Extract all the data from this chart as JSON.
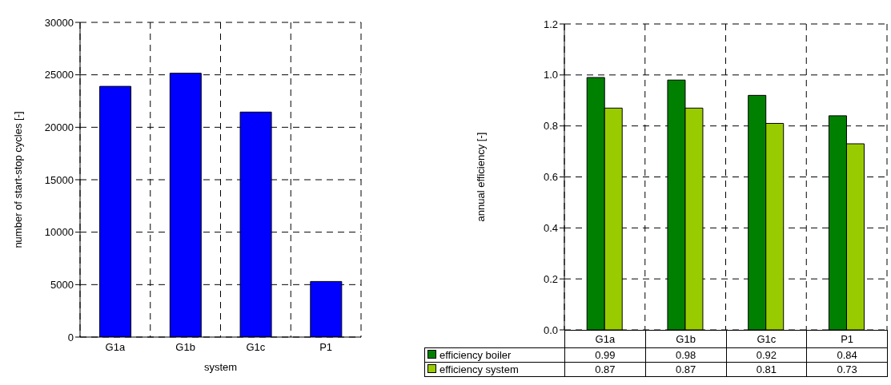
{
  "chart_data": [
    {
      "type": "bar",
      "xlabel": "system",
      "ylabel": "number of start-stop cycles [-]",
      "categories": [
        "G1a",
        "G1b",
        "G1c",
        "P1"
      ],
      "values": [
        23900,
        25150,
        21450,
        5300
      ],
      "color": "#0000ff",
      "ylim": [
        0,
        30000
      ],
      "yticks": [
        0,
        5000,
        10000,
        15000,
        20000,
        25000,
        30000
      ],
      "grid": true
    },
    {
      "type": "bar",
      "ylabel": "annual efficiency [-]",
      "categories": [
        "G1a",
        "G1b",
        "G1c",
        "P1"
      ],
      "series": [
        {
          "name": "efficiency boiler",
          "color": "#008000",
          "values": [
            0.99,
            0.98,
            0.92,
            0.84
          ]
        },
        {
          "name": "efficiency system",
          "color": "#99cc00",
          "values": [
            0.87,
            0.87,
            0.81,
            0.73
          ]
        }
      ],
      "ylim": [
        0,
        1.2
      ],
      "yticks": [
        {
          "value": 0,
          "label": "0.0"
        },
        {
          "value": 0.2,
          "label": "0.2"
        },
        {
          "value": 0.4,
          "label": "0.4"
        },
        {
          "value": 0.6,
          "label": "0.6"
        },
        {
          "value": 0.8,
          "label": "0.8"
        },
        {
          "value": 1,
          "label": "1.0"
        },
        {
          "value": 1.2,
          "label": "1.2"
        }
      ],
      "grid": true,
      "legend": "bottom",
      "data_labels": true
    }
  ]
}
